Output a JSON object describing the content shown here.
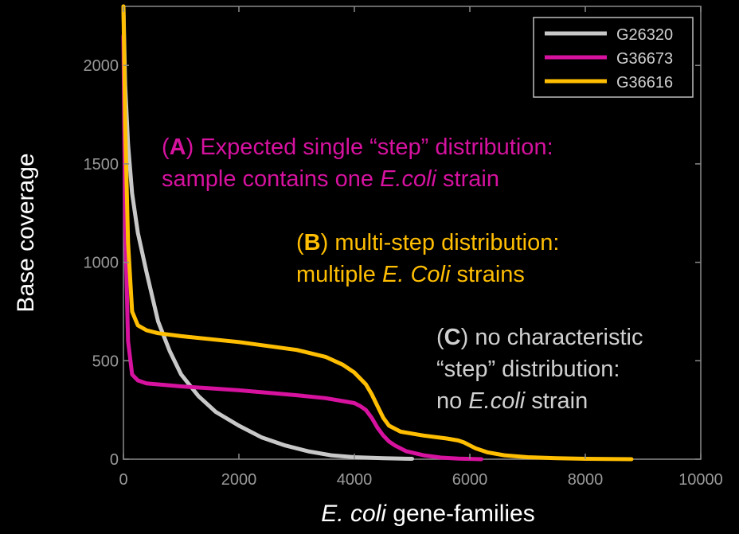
{
  "chart_data": {
    "type": "line",
    "xlabel_italic": "E. coli",
    "xlabel_rest": " gene-families",
    "ylabel": "Base coverage",
    "xlim": [
      0,
      10000
    ],
    "ylim": [
      0,
      2300
    ],
    "xticks": [
      0,
      2000,
      4000,
      6000,
      8000,
      10000
    ],
    "yticks": [
      0,
      500,
      1000,
      1500,
      2000
    ],
    "grid": false,
    "legend_position": "top-right",
    "series": [
      {
        "name": "G26320",
        "color": "#c8c8c8",
        "x": [
          0,
          30,
          80,
          150,
          250,
          400,
          600,
          800,
          1000,
          1300,
          1600,
          2000,
          2400,
          2800,
          3200,
          3600,
          4000,
          4500,
          5000
        ],
        "y": [
          2300,
          1900,
          1600,
          1350,
          1150,
          950,
          700,
          550,
          430,
          320,
          240,
          170,
          110,
          70,
          40,
          20,
          10,
          5,
          2
        ]
      },
      {
        "name": "G36673",
        "color": "#d6129f",
        "x": [
          0,
          30,
          80,
          150,
          250,
          400,
          1000,
          2000,
          3000,
          3500,
          3800,
          4000,
          4100,
          4200,
          4300,
          4400,
          4500,
          4600,
          4700,
          4900,
          5200,
          5500,
          5800,
          6200
        ],
        "y": [
          2150,
          1200,
          600,
          430,
          400,
          385,
          370,
          350,
          325,
          310,
          295,
          285,
          270,
          250,
          210,
          160,
          120,
          90,
          70,
          40,
          20,
          8,
          3,
          0
        ]
      },
      {
        "name": "G36616",
        "color": "#ffbe00",
        "x": [
          0,
          30,
          80,
          150,
          250,
          400,
          600,
          1000,
          2000,
          3000,
          3500,
          3800,
          4000,
          4200,
          4300,
          4400,
          4500,
          4600,
          4800,
          5200,
          5600,
          5800,
          5900,
          6000,
          6100,
          6300,
          6600,
          7000,
          7500,
          8000,
          8800
        ],
        "y": [
          2300,
          1700,
          1100,
          750,
          680,
          655,
          640,
          625,
          595,
          555,
          520,
          480,
          440,
          380,
          330,
          270,
          210,
          170,
          140,
          120,
          105,
          95,
          85,
          70,
          55,
          35,
          20,
          10,
          5,
          2,
          0
        ]
      }
    ],
    "annotations": [
      {
        "id": "a",
        "color": "#d6129f",
        "lines": [
          [
            {
              "t": "(",
              "b": false,
              "i": false
            },
            {
              "t": "A",
              "b": true,
              "i": false
            },
            {
              "t": ") Expected single “step” distribution:",
              "b": false,
              "i": false
            }
          ],
          [
            {
              "t": "sample contains one ",
              "b": false,
              "i": false
            },
            {
              "t": "E.coli",
              "b": false,
              "i": true
            },
            {
              "t": " strain",
              "b": false,
              "i": false
            }
          ]
        ]
      },
      {
        "id": "b",
        "color": "#ffbe00",
        "lines": [
          [
            {
              "t": "(",
              "b": false,
              "i": false
            },
            {
              "t": "B",
              "b": true,
              "i": false
            },
            {
              "t": ") multi-step distribution:",
              "b": false,
              "i": false
            }
          ],
          [
            {
              "t": "multiple ",
              "b": false,
              "i": false
            },
            {
              "t": "E. Coli",
              "b": false,
              "i": true
            },
            {
              "t": " strains",
              "b": false,
              "i": false
            }
          ]
        ]
      },
      {
        "id": "c",
        "color": "#d0d0d0",
        "lines": [
          [
            {
              "t": "(",
              "b": false,
              "i": false
            },
            {
              "t": "C",
              "b": true,
              "i": false
            },
            {
              "t": ") no characteristic",
              "b": false,
              "i": false
            }
          ],
          [
            {
              "t": "“step” distribution:",
              "b": false,
              "i": false
            }
          ],
          [
            {
              "t": "no ",
              "b": false,
              "i": false
            },
            {
              "t": "E.coli",
              "b": false,
              "i": true
            },
            {
              "t": " strain",
              "b": false,
              "i": false
            }
          ]
        ]
      }
    ]
  }
}
